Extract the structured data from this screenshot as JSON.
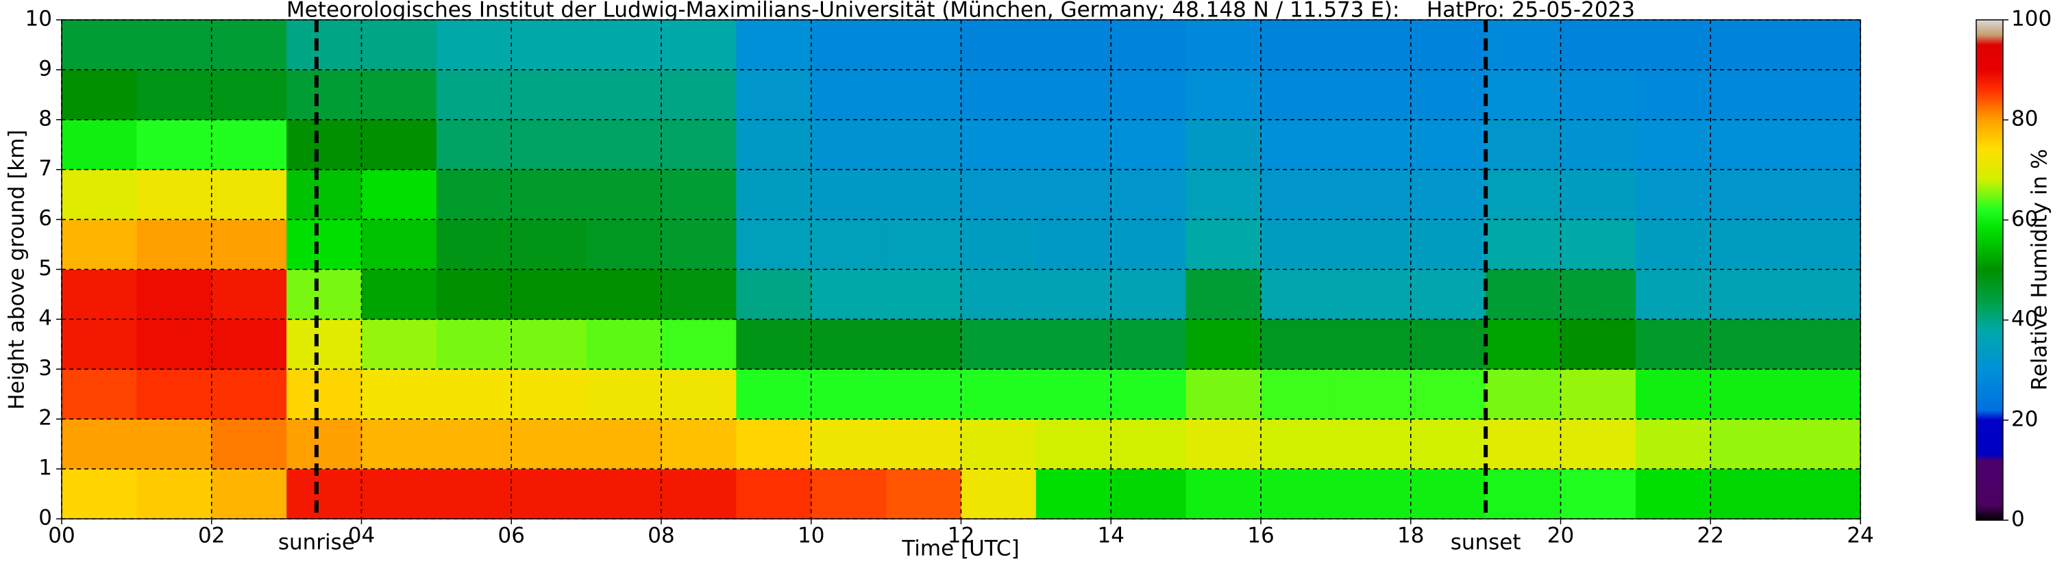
{
  "chart_data": {
    "type": "heatmap",
    "title": "Meteorologisches Institut der Ludwig-Maximilians-Universität (München, Germany; 48.148 N / 11.573 E):    HatPro: 25-05-2023",
    "x_label": "Time [UTC]",
    "y_label": "Height above ground [km]",
    "colorbar_label": "Relative Humidity in %",
    "x": [
      0.5,
      1.5,
      2.5,
      3.5,
      4.5,
      5.5,
      6.5,
      7.5,
      8.5,
      9.5,
      10.5,
      11.5,
      12.5,
      13.5,
      14.5,
      15.5,
      16.5,
      17.5,
      18.5,
      19.5,
      20.5,
      21.5,
      22.5,
      23.5
    ],
    "y": [
      0.5,
      1.5,
      2.5,
      3.5,
      4.5,
      5.5,
      6.5,
      7.5,
      8.5,
      9.5
    ],
    "values": [
      [
        75,
        76,
        78,
        88,
        88,
        88,
        88,
        88,
        88,
        86,
        85,
        84,
        72,
        58,
        57,
        60,
        60,
        60,
        60,
        61,
        62,
        58,
        57,
        57
      ],
      [
        80,
        80,
        82,
        80,
        78,
        78,
        78,
        78,
        77,
        75,
        72,
        72,
        70,
        68,
        68,
        70,
        68,
        68,
        68,
        70,
        70,
        67,
        66,
        66
      ],
      [
        85,
        86,
        86,
        75,
        73,
        73,
        73,
        72,
        72,
        62,
        62,
        62,
        62,
        62,
        62,
        65,
        63,
        63,
        63,
        65,
        66,
        60,
        60,
        60
      ],
      [
        88,
        89,
        89,
        70,
        66,
        65,
        65,
        64,
        63,
        48,
        48,
        48,
        45,
        45,
        45,
        52,
        47,
        47,
        47,
        52,
        50,
        46,
        46,
        46
      ],
      [
        88,
        89,
        88,
        65,
        52,
        50,
        50,
        50,
        49,
        40,
        38,
        38,
        36,
        36,
        36,
        45,
        37,
        37,
        37,
        45,
        45,
        36,
        36,
        36
      ],
      [
        78,
        80,
        80,
        58,
        55,
        48,
        48,
        47,
        46,
        35,
        35,
        35,
        34,
        33,
        33,
        38,
        34,
        34,
        34,
        38,
        38,
        34,
        34,
        34
      ],
      [
        70,
        72,
        72,
        55,
        58,
        46,
        46,
        46,
        45,
        34,
        33,
        33,
        32,
        32,
        32,
        35,
        32,
        32,
        32,
        35,
        34,
        32,
        32,
        32
      ],
      [
        60,
        62,
        62,
        50,
        50,
        42,
        42,
        42,
        42,
        33,
        31,
        31,
        30,
        30,
        30,
        33,
        30,
        30,
        30,
        32,
        31,
        30,
        30,
        30
      ],
      [
        50,
        48,
        48,
        45,
        45,
        40,
        40,
        40,
        40,
        32,
        29,
        29,
        28,
        28,
        28,
        30,
        28,
        28,
        28,
        30,
        29,
        28,
        28,
        28
      ],
      [
        45,
        45,
        45,
        40,
        40,
        38,
        38,
        38,
        38,
        30,
        28,
        28,
        27,
        27,
        27,
        28,
        27,
        27,
        27,
        28,
        27,
        27,
        27,
        27
      ]
    ],
    "xlim": [
      0,
      24
    ],
    "ylim": [
      0,
      10
    ],
    "xticks": [
      {
        "value": 0,
        "label": "00"
      },
      {
        "value": 2,
        "label": "02"
      },
      {
        "value": 4,
        "label": "04"
      },
      {
        "value": 6,
        "label": "06"
      },
      {
        "value": 8,
        "label": "08"
      },
      {
        "value": 10,
        "label": "10"
      },
      {
        "value": 12,
        "label": "12"
      },
      {
        "value": 14,
        "label": "14"
      },
      {
        "value": 16,
        "label": "16"
      },
      {
        "value": 18,
        "label": "18"
      },
      {
        "value": 20,
        "label": "20"
      },
      {
        "value": 22,
        "label": "22"
      },
      {
        "value": 24,
        "label": "24"
      }
    ],
    "yticks": [
      0,
      1,
      2,
      3,
      4,
      5,
      6,
      7,
      8,
      9,
      10
    ],
    "grid": true,
    "clim": [
      0,
      100
    ],
    "cticks": [
      0,
      20,
      40,
      60,
      80,
      100
    ],
    "colormap": [
      [
        0,
        "#000000"
      ],
      [
        3,
        "#4b0060"
      ],
      [
        12,
        "#4b0070"
      ],
      [
        13,
        "#0000c0"
      ],
      [
        20,
        "#0000c8"
      ],
      [
        22,
        "#0070e0"
      ],
      [
        30,
        "#0090d8"
      ],
      [
        38,
        "#00a8a8"
      ],
      [
        44,
        "#00a040"
      ],
      [
        50,
        "#009000"
      ],
      [
        58,
        "#00e000"
      ],
      [
        62,
        "#20ff20"
      ],
      [
        68,
        "#d0f000"
      ],
      [
        74,
        "#ffe000"
      ],
      [
        80,
        "#ffa000"
      ],
      [
        86,
        "#ff3000"
      ],
      [
        90,
        "#e80000"
      ],
      [
        95,
        "#e00000"
      ],
      [
        97,
        "#c8a070"
      ],
      [
        100,
        "#d8d8d8"
      ]
    ],
    "annotations": [
      {
        "text": "sunrise",
        "x": 3.4
      },
      {
        "text": "sunset",
        "x": 19.0
      }
    ]
  }
}
